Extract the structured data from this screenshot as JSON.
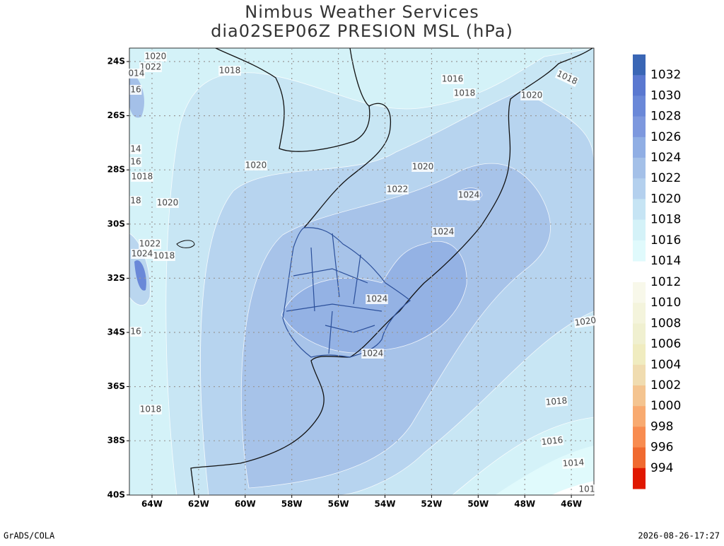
{
  "title": [
    "Nimbus Weather Services",
    "dia02SEP06Z PRESION MSL (hPa)"
  ],
  "lat_labels": [
    "24S",
    "26S",
    "28S",
    "30S",
    "32S",
    "34S",
    "36S",
    "38S",
    "40S"
  ],
  "lon_labels": [
    "64W",
    "62W",
    "60W",
    "58W",
    "56W",
    "54W",
    "52W",
    "50W",
    "48W",
    "46W"
  ],
  "contour_labels": [
    "1020",
    "1022",
    "014",
    "16",
    "1018",
    "1016",
    "1018",
    "1018",
    "1020",
    "14",
    "16",
    "1018",
    "1020",
    "1020",
    "1022",
    "1024",
    "18",
    "1020",
    "1024",
    "1022",
    "1024",
    "1018",
    "1024",
    "16",
    "1020",
    "1024",
    "1018",
    "1018",
    "1016",
    "1014",
    "101"
  ],
  "colorbar": {
    "upper": [
      {
        "label": "1032",
        "color": "#3a66b5"
      },
      {
        "label": "1030",
        "color": "#5a78d0"
      },
      {
        "label": "1028",
        "color": "#6a88d8"
      },
      {
        "label": "1026",
        "color": "#7d98de"
      },
      {
        "label": "1024",
        "color": "#90aee4"
      },
      {
        "label": "1022",
        "color": "#a4c0e8"
      },
      {
        "label": "1020",
        "color": "#b4d0ee"
      },
      {
        "label": "1018",
        "color": "#c6e4f4"
      },
      {
        "label": "1016",
        "color": "#d4f2f8"
      },
      {
        "label": "1014",
        "color": "#e0fafc"
      }
    ],
    "lower": [
      {
        "label": "1012",
        "color": "#f8f8ea"
      },
      {
        "label": "1010",
        "color": "#f4f4dc"
      },
      {
        "label": "1008",
        "color": "#f0f0d0"
      },
      {
        "label": "1006",
        "color": "#f0ecc0"
      },
      {
        "label": "1004",
        "color": "#f0dcb0"
      },
      {
        "label": "1002",
        "color": "#f4c490"
      },
      {
        "label": "1000",
        "color": "#f8aa70"
      },
      {
        "label": "998",
        "color": "#f88c50"
      },
      {
        "label": "996",
        "color": "#f06a30"
      },
      {
        "label": "994",
        "color": "#e01800"
      }
    ]
  },
  "footer": {
    "left": "GrADS/COLA",
    "right": "2026-08-26-17:27"
  }
}
